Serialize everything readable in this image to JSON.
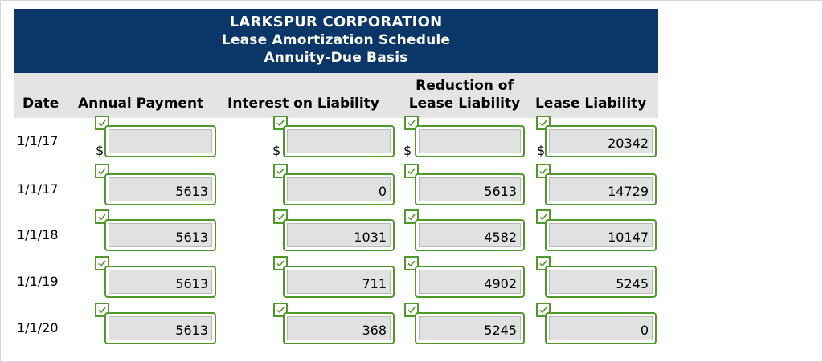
{
  "title": {
    "line1": "LARKSPUR CORPORATION",
    "line2": "Lease Amortization Schedule",
    "line3": "Annuity-Due Basis"
  },
  "headers": {
    "date": "Date",
    "annual_payment": "Annual Payment",
    "interest": "Interest on Liability",
    "reduction_line1": "Reduction of",
    "reduction_line2": "Lease Liability",
    "liability": "Lease Liability"
  },
  "currency_symbol": "$",
  "rows": [
    {
      "date": "1/1/17",
      "annual_payment": "",
      "interest": "",
      "reduction": "",
      "liability": "20342"
    },
    {
      "date": "1/1/17",
      "annual_payment": "5613",
      "interest": "0",
      "reduction": "5613",
      "liability": "14729"
    },
    {
      "date": "1/1/18",
      "annual_payment": "5613",
      "interest": "1031",
      "reduction": "4582",
      "liability": "10147"
    },
    {
      "date": "1/1/19",
      "annual_payment": "5613",
      "interest": "711",
      "reduction": "4902",
      "liability": "5245"
    },
    {
      "date": "1/1/20",
      "annual_payment": "5613",
      "interest": "368",
      "reduction": "5245",
      "liability": "0"
    }
  ],
  "colors": {
    "banner": "#0a3668",
    "header_band": "#e4e4e4",
    "check_green": "#4f9a2a",
    "field_fill": "#e1e1e1"
  },
  "icons": {
    "check": "check-icon"
  }
}
